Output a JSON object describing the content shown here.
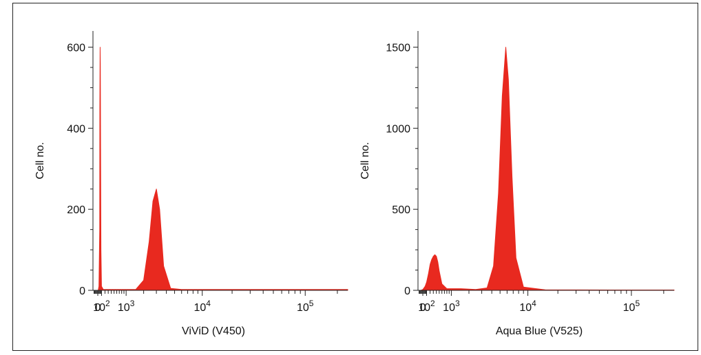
{
  "chart_data": [
    {
      "type": "area",
      "title": "",
      "xlabel": "ViViD (V450)",
      "ylabel": "Cell no.",
      "ylim": [
        0,
        640
      ],
      "y_ticks": [
        0,
        200,
        400,
        600
      ],
      "y_tick_labels": [
        "0",
        "200",
        "400",
        "600"
      ],
      "x_scale": "biexponential",
      "x_ticks": [
        {
          "label": "0",
          "exp": ""
        },
        {
          "label": "10",
          "exp": "2"
        },
        {
          "label": "10",
          "exp": "3"
        },
        {
          "label": "10",
          "exp": "4"
        },
        {
          "label": "10",
          "exp": "5"
        }
      ],
      "color": "#e8291f",
      "series": [
        {
          "x": [
            10,
            30,
            50,
            55,
            62,
            68,
            75,
            85,
            100,
            150,
            300,
            800,
            1500,
            2000,
            2400,
            2700,
            3000,
            3300,
            3700,
            4500,
            6000,
            20000,
            100000,
            250000
          ],
          "values": [
            0,
            10,
            150,
            450,
            600,
            560,
            350,
            100,
            10,
            2,
            2,
            2,
            2,
            25,
            120,
            220,
            250,
            200,
            60,
            5,
            2,
            2,
            2,
            2
          ]
        }
      ]
    },
    {
      "type": "area",
      "title": "",
      "xlabel": "Aqua Blue (V525)",
      "ylabel": "Cell no.",
      "ylim": [
        0,
        1600
      ],
      "y_ticks": [
        0,
        500,
        1000,
        1500
      ],
      "y_tick_labels": [
        "0",
        "500",
        "1000",
        "1500"
      ],
      "x_scale": "biexponential",
      "x_ticks": [
        {
          "label": "0",
          "exp": ""
        },
        {
          "label": "10",
          "exp": "2"
        },
        {
          "label": "10",
          "exp": "3"
        },
        {
          "label": "10",
          "exp": "4"
        },
        {
          "label": "10",
          "exp": "5"
        }
      ],
      "color": "#e8291f",
      "series": [
        {
          "x": [
            -50,
            0,
            30,
            60,
            100,
            150,
            200,
            250,
            300,
            350,
            400,
            450,
            500,
            600,
            800,
            1000,
            1500,
            2500,
            3500,
            4200,
            4800,
            5300,
            5800,
            6200,
            6800,
            7500,
            9000,
            15000,
            100000,
            250000
          ],
          "values": [
            0,
            5,
            15,
            25,
            50,
            100,
            160,
            190,
            210,
            220,
            210,
            175,
            120,
            40,
            10,
            10,
            10,
            5,
            15,
            150,
            600,
            1200,
            1500,
            1300,
            700,
            200,
            20,
            3,
            2,
            2
          ]
        }
      ]
    }
  ]
}
